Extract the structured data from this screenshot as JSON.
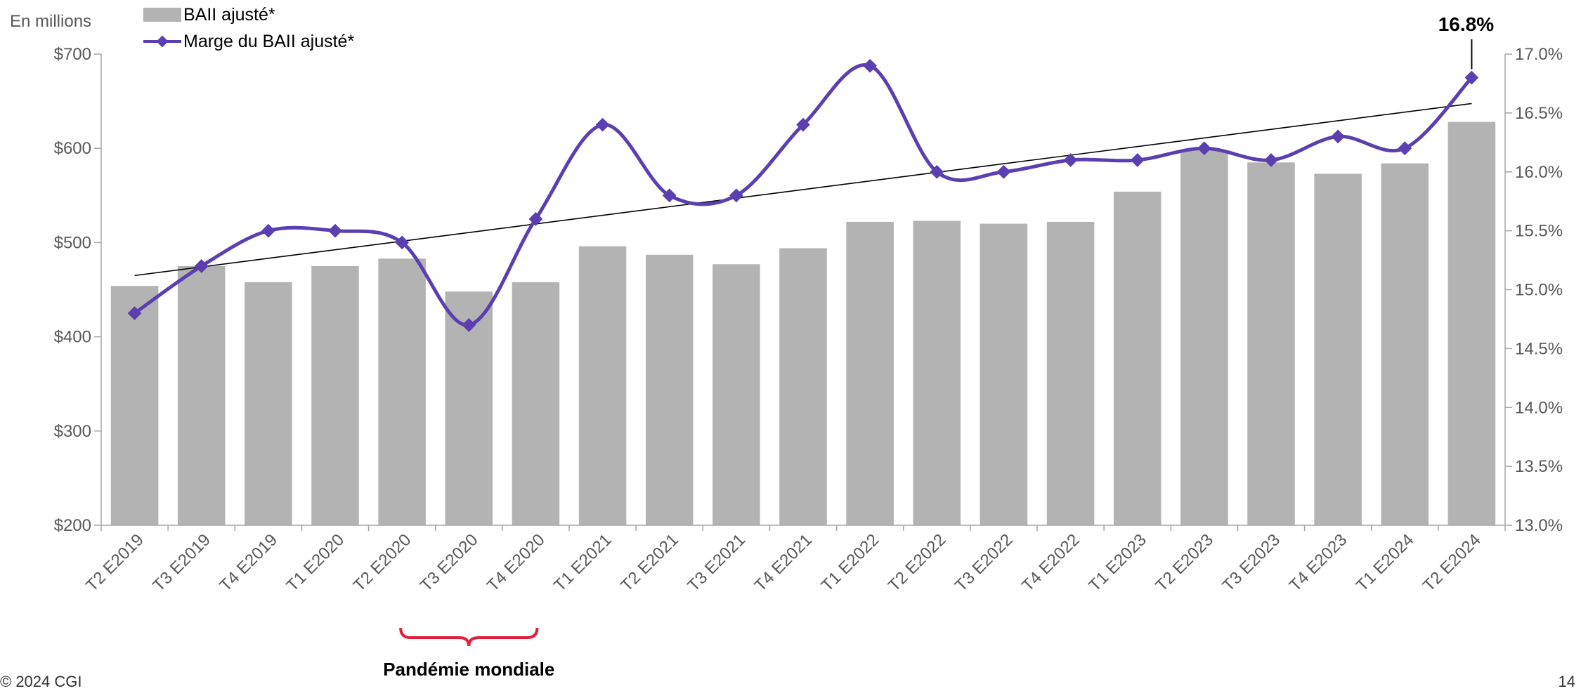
{
  "chart_data": {
    "type": "bar",
    "unit_label": "En millions",
    "categories": [
      "T2 E2019",
      "T3 E2019",
      "T4 E2019",
      "T1 E2020",
      "T2 E2020",
      "T3 E2020",
      "T4 E2020",
      "T1 E2021",
      "T2 E2021",
      "T3 E2021",
      "T4 E2021",
      "T1 E2022",
      "T2 E2022",
      "T3 E2022",
      "T4 E2022",
      "T1 E2023",
      "T2 E2023",
      "T3 E2023",
      "T4 E2023",
      "T1 E2024",
      "T2 E2024"
    ],
    "series": [
      {
        "name": "BAII ajusté*",
        "type": "bar",
        "axis": "left",
        "values": [
          454,
          475,
          458,
          475,
          483,
          448,
          458,
          496,
          487,
          477,
          494,
          522,
          523,
          520,
          522,
          554,
          598,
          585,
          573,
          584,
          628
        ]
      },
      {
        "name": "Marge du BAII ajusté*",
        "type": "line",
        "axis": "right",
        "values": [
          14.8,
          15.2,
          15.5,
          15.5,
          15.4,
          14.7,
          15.6,
          16.4,
          15.8,
          15.8,
          16.4,
          16.9,
          16.0,
          16.0,
          16.1,
          16.1,
          16.2,
          16.1,
          16.3,
          16.2,
          16.8
        ]
      }
    ],
    "trendline": {
      "series": "Marge du BAII ajusté*",
      "start": 15.12,
      "end": 16.58
    },
    "y_left": {
      "range": [
        200,
        700
      ],
      "ticks": [
        "$200",
        "$300",
        "$400",
        "$500",
        "$600",
        "$700"
      ],
      "tick_values": [
        200,
        300,
        400,
        500,
        600,
        700
      ]
    },
    "y_right": {
      "range": [
        13.0,
        17.0
      ],
      "ticks": [
        "13.0%",
        "13.5%",
        "14.0%",
        "14.5%",
        "15.0%",
        "15.5%",
        "16.0%",
        "16.5%",
        "17.0%"
      ],
      "tick_values": [
        13.0,
        13.5,
        14.0,
        14.5,
        15.0,
        15.5,
        16.0,
        16.5,
        17.0
      ]
    },
    "annotations": {
      "last_value": "16.8%",
      "bracket_label": "Pandémie mondiale",
      "bracket_from": "T2 E2020",
      "bracket_to": "T4 E2020"
    },
    "legend_position": "top-left",
    "colors": {
      "bar": "#b3b3b3",
      "line": "#5b3fb0",
      "trend": "#000000",
      "bracket": "#e0203c"
    }
  },
  "footer": {
    "copyright": "© 2024 CGI",
    "page_number": "14"
  }
}
